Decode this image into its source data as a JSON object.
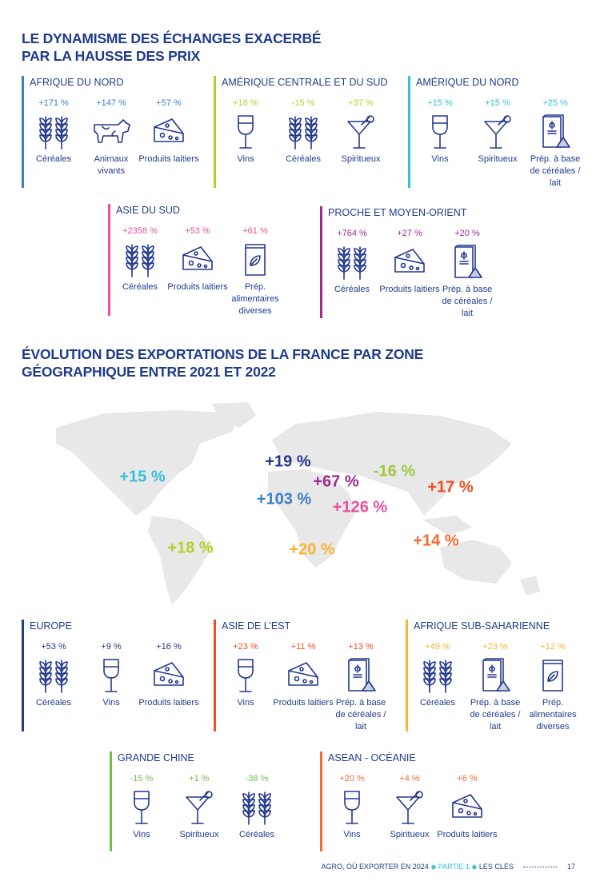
{
  "title1": [
    "LE DYNAMISME DES ÉCHANGES EXACERBÉ",
    "PAR LA HAUSSE DES PRIX"
  ],
  "title2": [
    "ÉVOLUTION DES EXPORTATIONS DE LA FRANCE PAR ZONE",
    "GÉOGRAPHIQUE ENTRE 2021 ET 2022"
  ],
  "panels": [
    {
      "name": "afrique-du-nord",
      "title": "AFRIQUE DU NORD",
      "color": "#3a7fc8",
      "items": [
        {
          "value": "+171 %",
          "icon": "wheat",
          "label": "Céréales"
        },
        {
          "value": "+147 %",
          "icon": "cow",
          "label": "Animaux vivants"
        },
        {
          "value": "+57 %",
          "icon": "cheese",
          "label": "Produits laitiers"
        }
      ]
    },
    {
      "name": "amerique-centrale-et-du-sud",
      "title": "AMÉRIQUE CENTRALE ET DU SUD",
      "color": "#b5cf2a",
      "items": [
        {
          "value": "+18 %",
          "icon": "wine",
          "label": "Vins"
        },
        {
          "value": "-15 %",
          "icon": "wheat",
          "label": "Céréales"
        },
        {
          "value": "+37 %",
          "icon": "cocktail",
          "label": "Spiritueux"
        }
      ]
    },
    {
      "name": "amerique-du-nord",
      "title": "AMÉRIQUE DU NORD",
      "color": "#35c0dc",
      "items": [
        {
          "value": "+15 %",
          "icon": "wine",
          "label": "Vins"
        },
        {
          "value": "+15 %",
          "icon": "cocktail",
          "label": "Spiritueux"
        },
        {
          "value": "+25 %",
          "icon": "cereal-box",
          "label": "Prép. à base de céréales / lait"
        }
      ]
    },
    {
      "name": "asie-du-sud",
      "title": "ASIE DU SUD",
      "color": "#e8509c",
      "items": [
        {
          "value": "+2358 %",
          "icon": "wheat",
          "label": "Céréales"
        },
        {
          "value": "+53 %",
          "icon": "cheese",
          "label": "Produits laitiers"
        },
        {
          "value": "+61 %",
          "icon": "food-bag",
          "label": "Prép. alimentaires diverses"
        }
      ]
    },
    {
      "name": "proche-et-moyen-orient",
      "title": "PROCHE ET MOYEN-ORIENT",
      "color": "#9a2c8e",
      "items": [
        {
          "value": "+764 %",
          "icon": "wheat",
          "label": "Céréales"
        },
        {
          "value": "+27 %",
          "icon": "cheese",
          "label": "Produits laitiers"
        },
        {
          "value": "+20 %",
          "icon": "cereal-box",
          "label": "Prép. à base de céréales / lait"
        }
      ]
    },
    {
      "name": "europe",
      "title": "EUROPE",
      "color": "#24388c",
      "items": [
        {
          "value": "+53 %",
          "icon": "wheat",
          "label": "Céréales"
        },
        {
          "value": "+9 %",
          "icon": "wine",
          "label": "Vins"
        },
        {
          "value": "+16 %",
          "icon": "cheese",
          "label": "Produits laitiers"
        }
      ]
    },
    {
      "name": "asie-de-l-est",
      "title": "ASIE DE L’EST",
      "color": "#f04e23",
      "items": [
        {
          "value": "+23 %",
          "icon": "wine",
          "label": "Vins"
        },
        {
          "value": "+11 %",
          "icon": "cheese",
          "label": "Produits laitiers"
        },
        {
          "value": "+13 %",
          "icon": "cereal-box",
          "label": "Prép. à base de céréales / lait"
        }
      ]
    },
    {
      "name": "afrique-sub-saharienne",
      "title": "AFRIQUE SUB-SAHARIENNE",
      "color": "#f9b331",
      "items": [
        {
          "value": "+49 %",
          "icon": "wheat",
          "label": "Céréales"
        },
        {
          "value": "+23 %",
          "icon": "cereal-box",
          "label": "Prép. à base de céréales / lait"
        },
        {
          "value": "+12 %",
          "icon": "food-bag",
          "label": "Prép. alimentaires diverses"
        }
      ]
    },
    {
      "name": "grande-chine",
      "title": "GRANDE CHINE",
      "color": "#6dbf4a",
      "items": [
        {
          "value": "-15 %",
          "icon": "wine",
          "label": "Vins"
        },
        {
          "value": "+1 %",
          "icon": "cocktail",
          "label": "Spiritueux"
        },
        {
          "value": "-38 %",
          "icon": "wheat",
          "label": "Céréales"
        }
      ]
    },
    {
      "name": "asean-oceanie",
      "title": "ASEAN - OCÉANIE",
      "color": "#f26a30",
      "items": [
        {
          "value": "+20 %",
          "icon": "wine",
          "label": "Vins"
        },
        {
          "value": "+4 %",
          "icon": "cocktail",
          "label": "Spiritueux"
        },
        {
          "value": "+6 %",
          "icon": "cheese",
          "label": "Produits laitiers"
        }
      ]
    }
  ],
  "map_labels": [
    {
      "region": "amerique-du-nord",
      "value": "+15 %",
      "color": "#35c0dc"
    },
    {
      "region": "europe",
      "value": "+19 %",
      "color": "#24388c"
    },
    {
      "region": "proche-et-moyen-orient",
      "value": "+67 %",
      "color": "#9a2c8e"
    },
    {
      "region": "grande-chine",
      "value": "-16 %",
      "color": "#9cc83a"
    },
    {
      "region": "asie-de-l-est",
      "value": "+17 %",
      "color": "#f04e23"
    },
    {
      "region": "afrique-du-nord",
      "value": "+103 %",
      "color": "#3a7fc8"
    },
    {
      "region": "asie-du-sud",
      "value": "+126 %",
      "color": "#e8509c"
    },
    {
      "region": "asean-oceanie",
      "value": "+14 %",
      "color": "#f26a30"
    },
    {
      "region": "amerique-centrale-et-du-sud",
      "value": "+18 %",
      "color": "#b5cf2a"
    },
    {
      "region": "afrique-sub-saharienne",
      "value": "+20 %",
      "color": "#f9b331"
    }
  ],
  "footer": {
    "doc": "AGRO, OÙ EXPORTER EN 2024",
    "part": "PARTIE 1",
    "section": "LES CLÉS",
    "page": "17"
  }
}
